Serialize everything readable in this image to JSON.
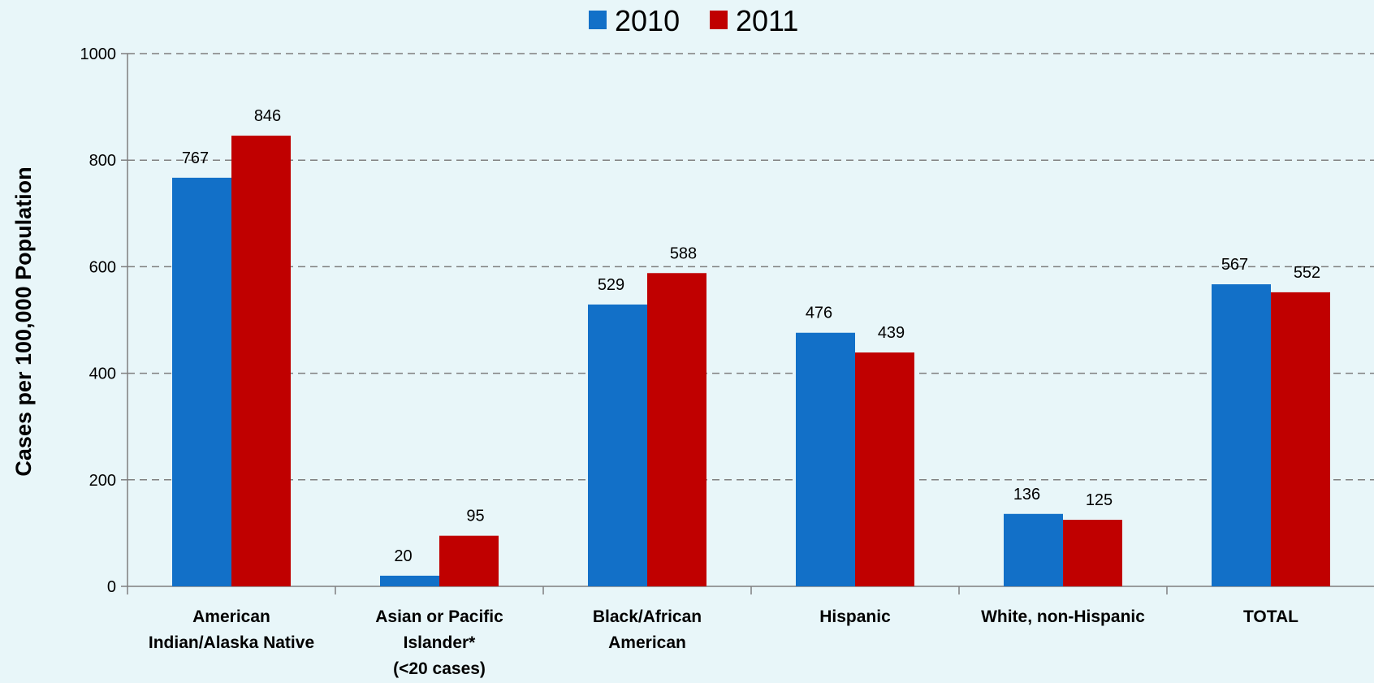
{
  "chart_data": {
    "type": "bar",
    "title": "",
    "xlabel": "",
    "ylabel": "Cases per 100,000 Population",
    "ylim": [
      0,
      1000
    ],
    "yticks": [
      0,
      200,
      400,
      600,
      800,
      1000
    ],
    "grid": true,
    "legend_position": "top-center",
    "categories": [
      [
        "American",
        "Indian/Alaska Native"
      ],
      [
        "Asian or Pacific",
        "Islander*",
        "(<20 cases)"
      ],
      [
        "Black/African",
        "American"
      ],
      [
        "Hispanic"
      ],
      [
        "White, non-Hispanic"
      ],
      [
        "TOTAL"
      ]
    ],
    "series": [
      {
        "name": "2010",
        "color": "#1270c8",
        "values": [
          767,
          20,
          529,
          476,
          136,
          567
        ]
      },
      {
        "name": "2011",
        "color": "#c00000",
        "values": [
          846,
          95,
          588,
          439,
          125,
          552
        ]
      }
    ]
  }
}
